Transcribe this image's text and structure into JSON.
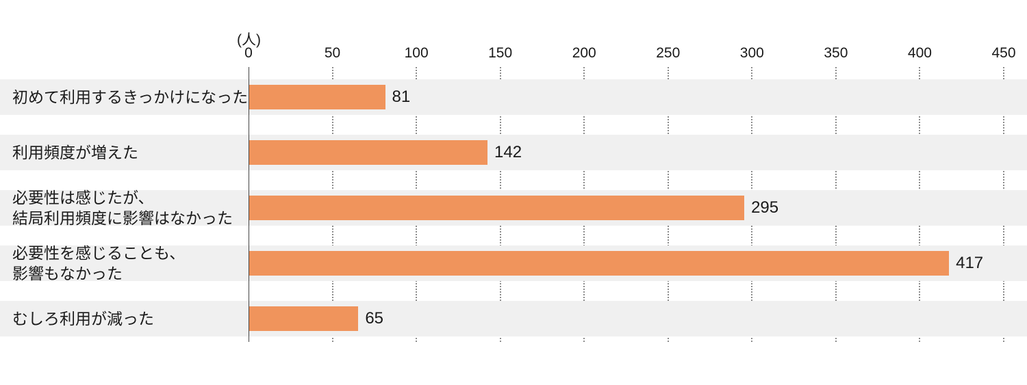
{
  "chart_data": {
    "type": "bar",
    "orientation": "horizontal",
    "title": "",
    "unit_label": "(人)",
    "categories": [
      "初めて利用するきっかけになった",
      "利用頻度が増えた",
      "必要性は感じたが、\n結局利用頻度に影響はなかった",
      "必要性を感じることも、\n影響もなかった",
      "むしろ利用が減った"
    ],
    "values": [
      81,
      142,
      295,
      417,
      65
    ],
    "value_labels": [
      "81",
      "142",
      "295",
      "417",
      "65"
    ],
    "xlim": [
      0,
      450
    ],
    "ticks": [
      0,
      50,
      100,
      150,
      200,
      250,
      300,
      350,
      400,
      450
    ],
    "tick_labels": [
      "0",
      "50",
      "100",
      "150",
      "200",
      "250",
      "300",
      "350",
      "400",
      "450"
    ],
    "legend": "none",
    "grid": "vertical dotted gridlines at each tick, visible only in gaps between row bands",
    "colors": {
      "bar": "#f0945c",
      "row_band": "#f0f0f0",
      "axis_line": "#444444",
      "gridline": "#8c8c8c",
      "text": "#1a1a1a",
      "background": "#ffffff"
    }
  }
}
